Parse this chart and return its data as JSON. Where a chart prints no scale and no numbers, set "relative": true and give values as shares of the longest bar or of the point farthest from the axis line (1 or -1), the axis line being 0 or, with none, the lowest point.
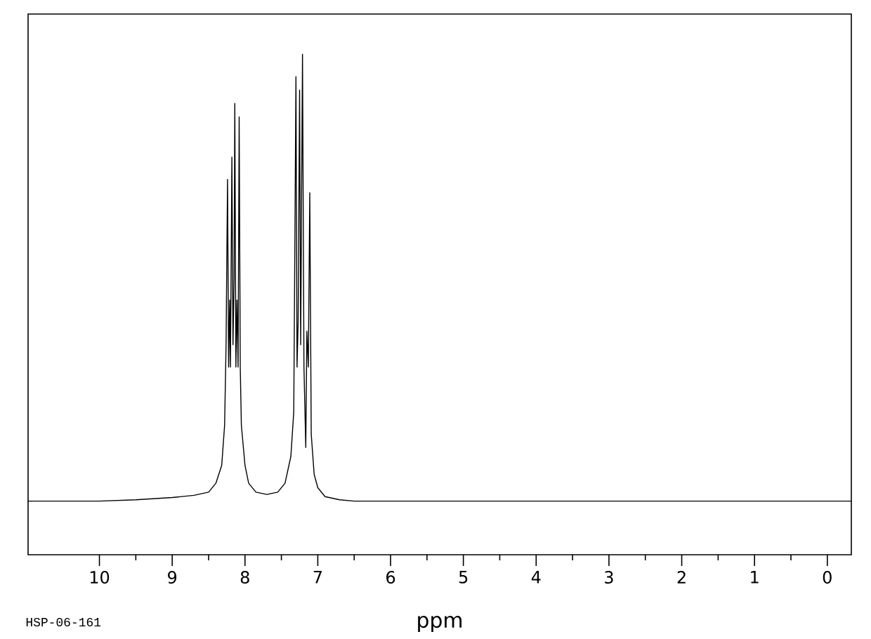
{
  "chart_data": {
    "type": "line",
    "relative": true,
    "xlabel": "ppm",
    "annotations": [
      "HSP-06-161"
    ],
    "xlim": [
      10.98,
      -0.33
    ],
    "xticks": [
      10,
      9,
      8,
      7,
      6,
      5,
      4,
      3,
      2,
      1,
      0
    ],
    "grid": false,
    "marker": "none",
    "line_style": "solid",
    "series": [
      {
        "color": "#000000",
        "x": [
          10.98,
          10,
          9.5,
          9.0,
          8.7,
          8.5,
          8.4,
          8.32,
          8.28,
          8.26,
          8.24,
          8.225,
          8.21,
          8.2,
          8.18,
          8.165,
          8.15,
          8.14,
          8.125,
          8.11,
          8.095,
          8.08,
          8.065,
          8.05,
          8.0,
          7.95,
          7.85,
          7.7,
          7.55,
          7.45,
          7.37,
          7.33,
          7.3,
          7.285,
          7.27,
          7.25,
          7.235,
          7.21,
          7.19,
          7.165,
          7.15,
          7.13,
          7.11,
          7.09,
          7.05,
          7.0,
          6.9,
          6.7,
          6.5,
          4,
          0,
          -0.33
        ],
        "values": [
          0,
          0,
          0.003,
          0.008,
          0.013,
          0.02,
          0.04,
          0.08,
          0.17,
          0.35,
          0.72,
          0.3,
          0.45,
          0.3,
          0.77,
          0.35,
          0.5,
          0.89,
          0.3,
          0.45,
          0.3,
          0.86,
          0.3,
          0.17,
          0.08,
          0.04,
          0.02,
          0.015,
          0.02,
          0.04,
          0.1,
          0.2,
          0.95,
          0.3,
          0.4,
          0.92,
          0.35,
          1.0,
          0.3,
          0.12,
          0.38,
          0.3,
          0.69,
          0.15,
          0.06,
          0.03,
          0.01,
          0.003,
          0,
          0,
          0,
          0
        ]
      }
    ]
  }
}
